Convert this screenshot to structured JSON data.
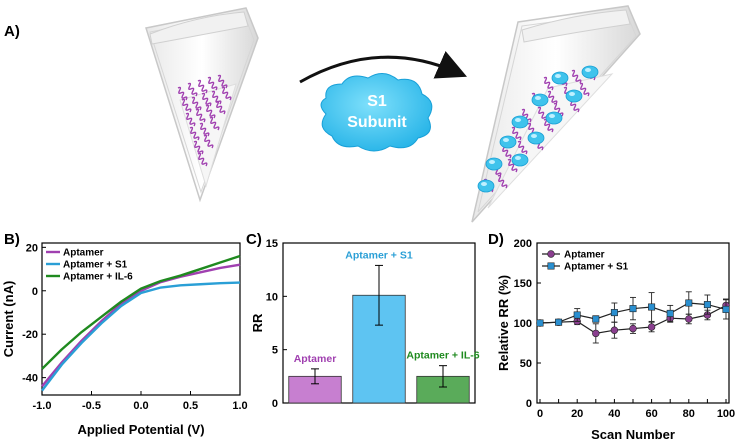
{
  "panel_labels": [
    "A)",
    "B)",
    "C)",
    "D)"
  ],
  "scheme": {
    "protein_label": [
      "S1",
      "Subunit"
    ],
    "colors": {
      "aptamer": "#a040b0",
      "protein": "#3fc3ec",
      "arrow": "#111111"
    }
  },
  "chart_data": [
    {
      "type": "line",
      "panel": "B)",
      "xlabel": "Applied Potential (V)",
      "ylabel": "Current (nA)",
      "xlim": [
        -1.0,
        1.0
      ],
      "ylim": [
        -48,
        22
      ],
      "x_ticks": [
        -1.0,
        -0.5,
        0.0,
        0.5,
        1.0
      ],
      "y_ticks": [
        -40,
        -20,
        0,
        20
      ],
      "x_tick_labels": [
        "-1.0",
        "-0.5",
        "0.0",
        "0.5",
        "1.0"
      ],
      "y_tick_labels": [
        "-40",
        "-20",
        "0",
        "20"
      ],
      "legend_position": "top-left",
      "series": [
        {
          "name": "Aptamer",
          "color": "#a040b0",
          "x": [
            -1.0,
            -0.8,
            -0.6,
            -0.4,
            -0.2,
            0.0,
            0.2,
            0.4,
            0.6,
            0.8,
            1.0
          ],
          "y": [
            -44,
            -33,
            -23,
            -14,
            -6,
            0,
            4,
            6.5,
            8.5,
            10.5,
            12
          ]
        },
        {
          "name": "Aptamer + S1",
          "color": "#2a9fd6",
          "x": [
            -1.0,
            -0.8,
            -0.6,
            -0.4,
            -0.2,
            0.0,
            0.2,
            0.4,
            0.6,
            0.8,
            1.0
          ],
          "y": [
            -46,
            -34,
            -24,
            -15,
            -7,
            -1,
            1.5,
            2.5,
            3,
            3.5,
            3.8
          ]
        },
        {
          "name": "Aptamer + IL-6",
          "color": "#1f8a1f",
          "x": [
            -1.0,
            -0.8,
            -0.6,
            -0.4,
            -0.2,
            0.0,
            0.2,
            0.4,
            0.6,
            0.8,
            1.0
          ],
          "y": [
            -36,
            -27,
            -19,
            -12,
            -5,
            1,
            4.5,
            7,
            10,
            13,
            16
          ]
        }
      ]
    },
    {
      "type": "bar",
      "panel": "C)",
      "ylabel": "RR",
      "ylim": [
        0,
        15
      ],
      "y_ticks": [
        0,
        5,
        10,
        15
      ],
      "y_tick_labels": [
        "0",
        "5",
        "10",
        "15"
      ],
      "categories": [
        "Aptamer",
        "Aptamer + S1",
        "Aptamer + IL-6"
      ],
      "values": [
        2.5,
        10.1,
        2.5
      ],
      "errors": [
        0.7,
        2.8,
        1.0
      ],
      "colors": [
        "#c77fd0",
        "#5ec4f2",
        "#5aab5a"
      ],
      "label_colors": [
        "#a040b0",
        "#2a9fd6",
        "#1f8a1f"
      ]
    },
    {
      "type": "line",
      "panel": "D)",
      "xlabel": "Scan Number",
      "ylabel": "Relative RR (%)",
      "xlim": [
        0,
        100
      ],
      "ylim": [
        0,
        200
      ],
      "x_ticks": [
        0,
        10,
        20,
        30,
        40,
        50,
        60,
        70,
        80,
        90,
        100
      ],
      "y_ticks": [
        0,
        50,
        100,
        150,
        200
      ],
      "x_tick_labels": [
        "0",
        "10",
        "20",
        "30",
        "40",
        "50",
        "60",
        "70",
        "80",
        "90",
        "100"
      ],
      "y_tick_labels": [
        "0",
        "50",
        "100",
        "150",
        "200"
      ],
      "legend_position": "top-left",
      "series": [
        {
          "name": "Aptamer",
          "color": "#8a3f8f",
          "marker": "circle",
          "x": [
            0,
            10,
            20,
            30,
            40,
            50,
            60,
            70,
            80,
            90,
            100
          ],
          "y": [
            100,
            101,
            102,
            87,
            91,
            93,
            95,
            106,
            105,
            110,
            122
          ],
          "err": [
            3,
            3,
            4,
            12,
            10,
            6,
            6,
            5,
            6,
            6,
            8
          ]
        },
        {
          "name": "Aptamer + S1",
          "color": "#2a8fd0",
          "marker": "square",
          "x": [
            0,
            10,
            20,
            30,
            40,
            50,
            60,
            70,
            80,
            90,
            100
          ],
          "y": [
            100,
            101,
            110,
            105,
            113,
            118,
            120,
            112,
            125,
            123,
            117
          ],
          "err": [
            3,
            3,
            8,
            4,
            12,
            14,
            18,
            10,
            14,
            12,
            12
          ]
        }
      ]
    }
  ]
}
